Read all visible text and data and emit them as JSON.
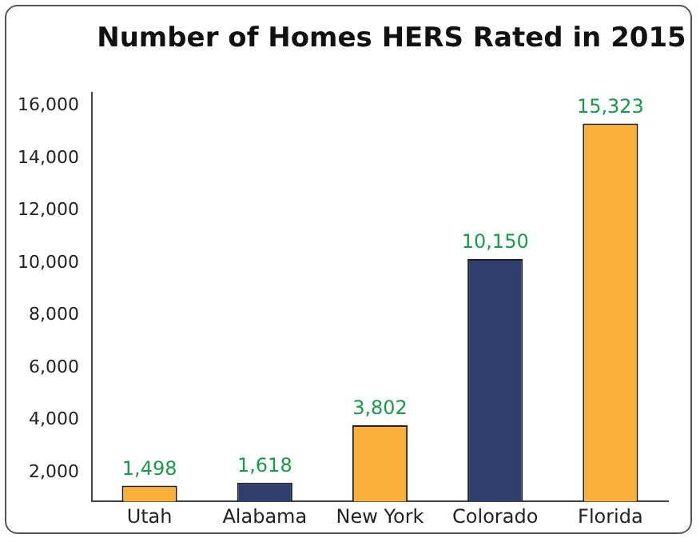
{
  "chart_data": {
    "type": "bar",
    "title": "Number of Homes HERS Rated in 2015",
    "categories": [
      "Utah",
      "Alabama",
      "New York",
      "Colorado",
      "Florida"
    ],
    "values": [
      1498,
      1618,
      3802,
      10150,
      15323
    ],
    "colors": [
      "#fbb03b",
      "#2e3f6e",
      "#fbb03b",
      "#2e3f6e",
      "#fbb03b"
    ],
    "value_labels": [
      "1,498",
      "1,618",
      "3,802",
      "10,150",
      "15,323"
    ],
    "ylim": [
      900,
      16500
    ],
    "yticks": [
      {
        "value": 2000,
        "label": "2,000"
      },
      {
        "value": 4000,
        "label": "4,000"
      },
      {
        "value": 6000,
        "label": "6,000"
      },
      {
        "value": 8000,
        "label": "8,000"
      },
      {
        "value": 10000,
        "label": "10,000"
      },
      {
        "value": 12000,
        "label": "12,000"
      },
      {
        "value": 14000,
        "label": "14,000"
      },
      {
        "value": 16000,
        "label": "16,000"
      }
    ],
    "grid": false,
    "legend": false
  }
}
